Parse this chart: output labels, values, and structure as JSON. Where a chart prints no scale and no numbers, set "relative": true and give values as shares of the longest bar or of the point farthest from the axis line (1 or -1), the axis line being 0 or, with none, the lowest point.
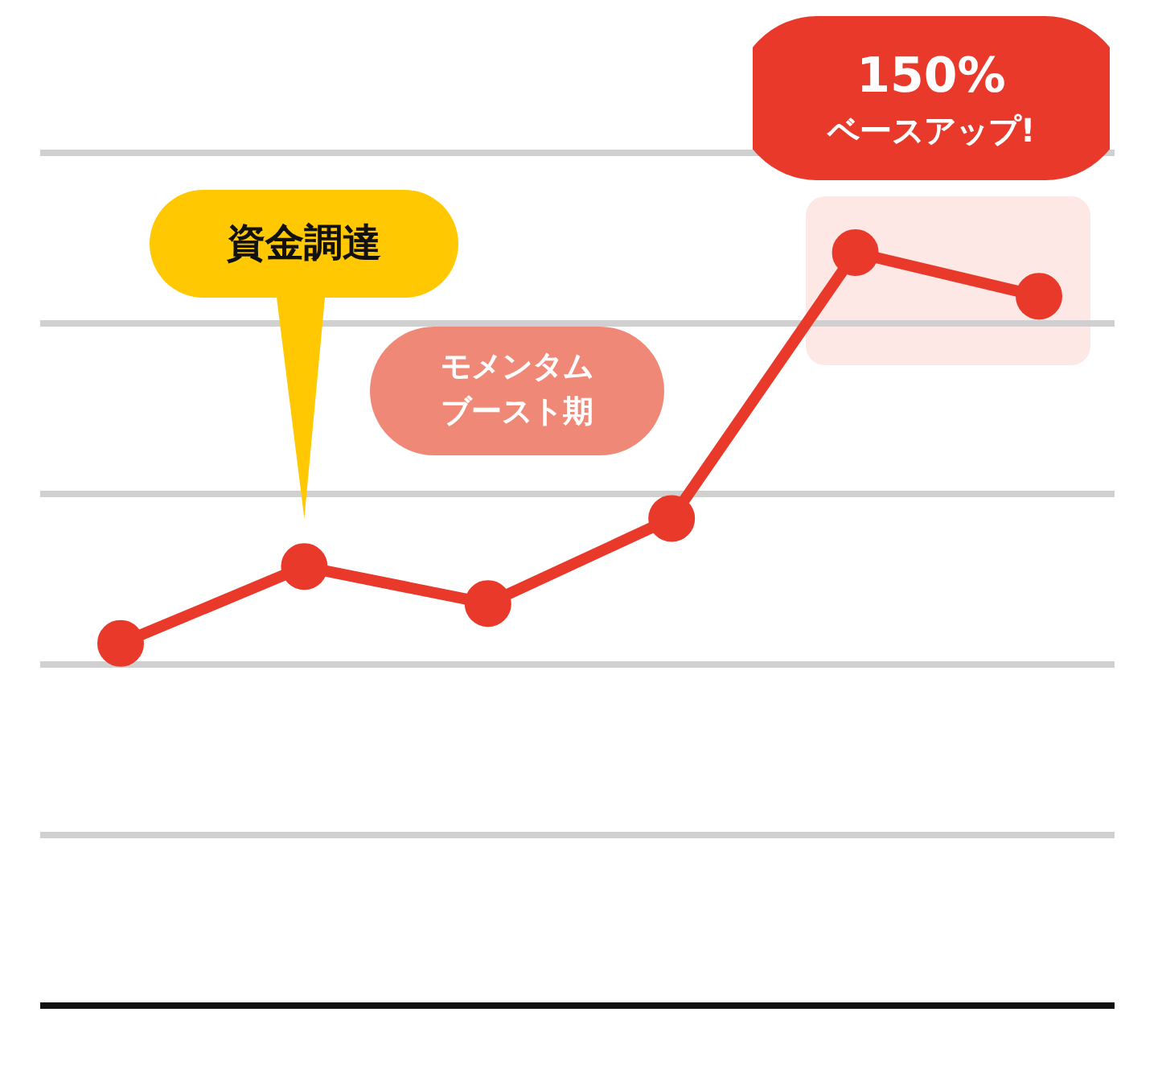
{
  "chart_data": {
    "type": "line",
    "relative": true,
    "categories": [
      null,
      null,
      null,
      null,
      null,
      null
    ],
    "series": [
      {
        "color": "#e8392a",
        "values": [
          0.481,
          0.583,
          0.534,
          0.647,
          1,
          0.942
        ]
      }
    ],
    "grid": "y",
    "marker": "circle",
    "legend": false,
    "annotations": [
      "資金調達",
      "モメンタムブースト期",
      "150%ベースアップ!"
    ]
  }
}
